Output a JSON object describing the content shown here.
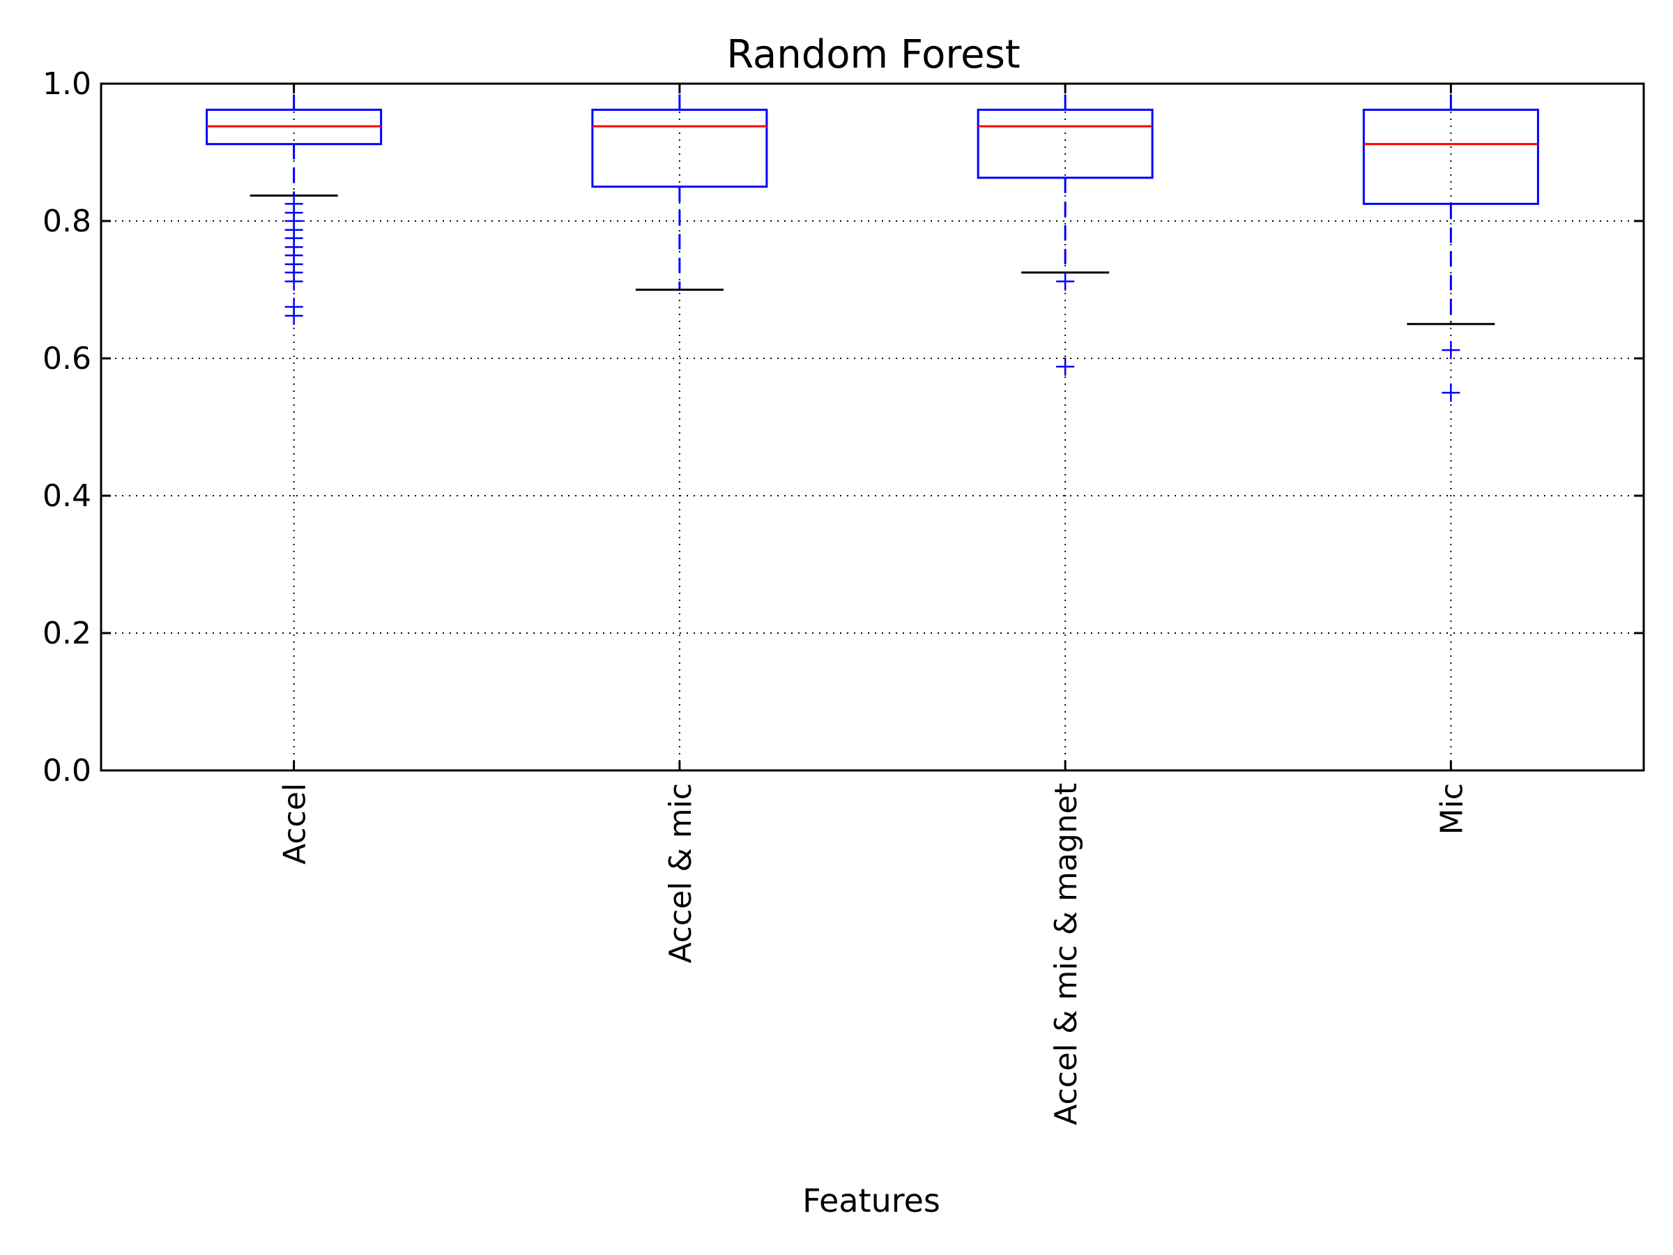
{
  "chart_data": {
    "type": "box",
    "title": "Random Forest",
    "xlabel": "Features",
    "ylabel": "",
    "ylim": [
      0.0,
      1.0
    ],
    "yticks": [
      "0.0",
      "0.2",
      "0.4",
      "0.6",
      "0.8",
      "1.0"
    ],
    "grid": true,
    "categories": [
      "Accel",
      "Accel & mic",
      "Accel & mic & magnet",
      "Mic"
    ],
    "boxes": [
      {
        "category": "Accel",
        "whisker_low": 0.837,
        "q1": 0.912,
        "median": 0.938,
        "q3": 0.962,
        "whisker_high": 1.0,
        "outliers": [
          0.825,
          0.812,
          0.8,
          0.787,
          0.775,
          0.762,
          0.75,
          0.737,
          0.725,
          0.712,
          0.675,
          0.662
        ]
      },
      {
        "category": "Accel & mic",
        "whisker_low": 0.7,
        "q1": 0.85,
        "median": 0.938,
        "q3": 0.962,
        "whisker_high": 1.0,
        "outliers": []
      },
      {
        "category": "Accel & mic & magnet",
        "whisker_low": 0.725,
        "q1": 0.863,
        "median": 0.938,
        "q3": 0.962,
        "whisker_high": 1.0,
        "outliers": [
          0.712,
          0.588
        ]
      },
      {
        "category": "Mic",
        "whisker_low": 0.65,
        "q1": 0.825,
        "median": 0.912,
        "q3": 0.962,
        "whisker_high": 1.0,
        "outliers": [
          0.612,
          0.55
        ]
      }
    ],
    "colors": {
      "box": "#0000ff",
      "median": "#ff0000",
      "whisker_cap": "#000000",
      "outlier": "#0000ff",
      "grid": "#000000"
    }
  }
}
